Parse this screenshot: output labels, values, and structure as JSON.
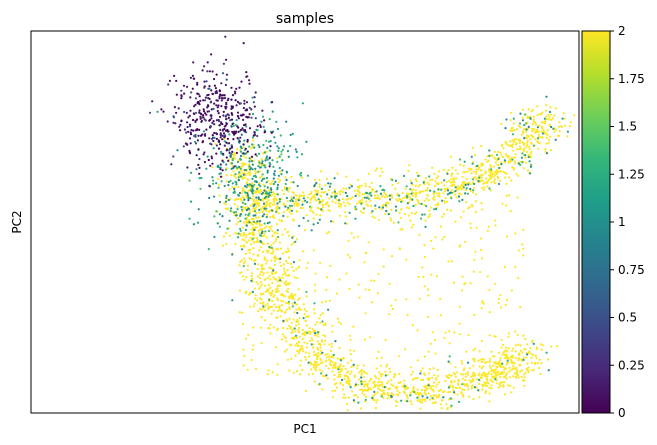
{
  "chart_data": {
    "type": "scatter",
    "title": "samples",
    "xlabel": "PC1",
    "ylabel": "PC2",
    "x_ticks": "none",
    "y_ticks": "none",
    "grid": false,
    "legend": "none",
    "color_encoding": "continuous",
    "colormap": "viridis",
    "colorbar": {
      "range": [
        0,
        2
      ],
      "tick_labels": [
        "0",
        "0.25",
        "0.5",
        "0.75",
        "1",
        "1.25",
        "1.5",
        "1.75",
        "2"
      ],
      "tick_values": [
        0,
        0.25,
        0.5,
        0.75,
        1,
        1.25,
        1.5,
        1.75,
        2
      ]
    },
    "xlim": [
      0,
      100
    ],
    "ylim": [
      0,
      100
    ],
    "point_groups": [
      {
        "value": 0,
        "description": "dense cluster at upper-left",
        "center": [
          34,
          77
        ],
        "spread": [
          4,
          6
        ],
        "count": 420
      },
      {
        "value": 1,
        "description": "teal points concentrated near upper-left arm",
        "center": [
          40,
          60
        ],
        "spread": [
          10,
          14
        ],
        "count": 650
      },
      {
        "value": 2,
        "description": "yellow points along U-shaped manifold",
        "center": [
          60,
          35
        ],
        "spread": [
          20,
          20
        ],
        "count": 2600
      }
    ],
    "manifold_path": [
      [
        38,
        68
      ],
      [
        40,
        55
      ],
      [
        42,
        42
      ],
      [
        46,
        28
      ],
      [
        52,
        14
      ],
      [
        62,
        6
      ],
      [
        75,
        6
      ],
      [
        85,
        10
      ],
      [
        90,
        16
      ]
    ],
    "upper_arm_path": [
      [
        42,
        55
      ],
      [
        55,
        56
      ],
      [
        70,
        56
      ],
      [
        82,
        62
      ],
      [
        90,
        70
      ],
      [
        94,
        78
      ]
    ]
  },
  "colors": {
    "viridis_stops": [
      "#440154",
      "#482878",
      "#3e4989",
      "#31688e",
      "#26828e",
      "#1f9e89",
      "#35b779",
      "#6ece58",
      "#b5de2b",
      "#fde725"
    ]
  }
}
